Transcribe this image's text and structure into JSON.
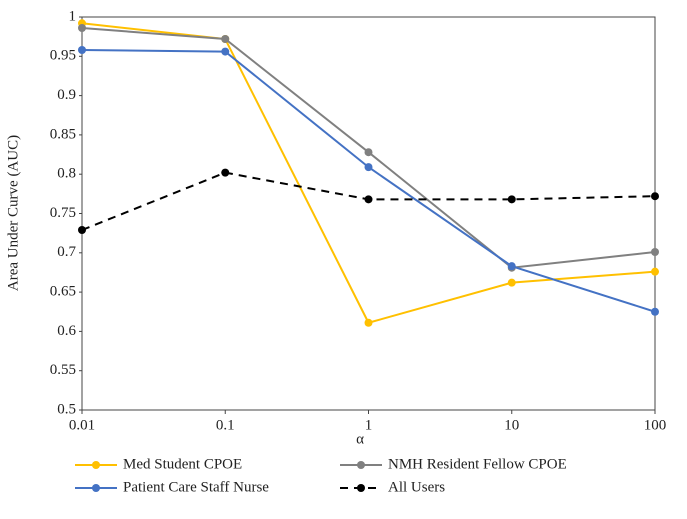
{
  "chart_data": {
    "type": "line",
    "x_label": "α",
    "y_label": "Area Under Curve (AUC)",
    "x": [
      0.01,
      0.1,
      1,
      10,
      100
    ],
    "xscale": "log",
    "xlim": [
      0.01,
      100
    ],
    "xticks": [
      0.01,
      0.1,
      1,
      10,
      100
    ],
    "ylim": [
      0.5,
      1
    ],
    "yticks": [
      0.5,
      0.55,
      0.6,
      0.65,
      0.7,
      0.75,
      0.8,
      0.85,
      0.9,
      0.95,
      1
    ],
    "grid": false,
    "legend": "bottom",
    "series": [
      {
        "name": "Med Student CPOE",
        "color": "#FFC000",
        "values": [
          0.992,
          0.972,
          0.611,
          0.662,
          0.676
        ]
      },
      {
        "name": "NMH Resident Fellow CPOE",
        "color": "#808080",
        "values": [
          0.986,
          0.972,
          0.828,
          0.681,
          0.701
        ]
      },
      {
        "name": "Patient Care Staff Nurse",
        "color": "#4472C4",
        "values": [
          0.958,
          0.956,
          0.809,
          0.683,
          0.625
        ]
      },
      {
        "name": "All Users",
        "color": "#000000",
        "line_style": "dashed",
        "values": [
          0.729,
          0.802,
          0.768,
          0.768,
          0.772
        ]
      }
    ]
  }
}
